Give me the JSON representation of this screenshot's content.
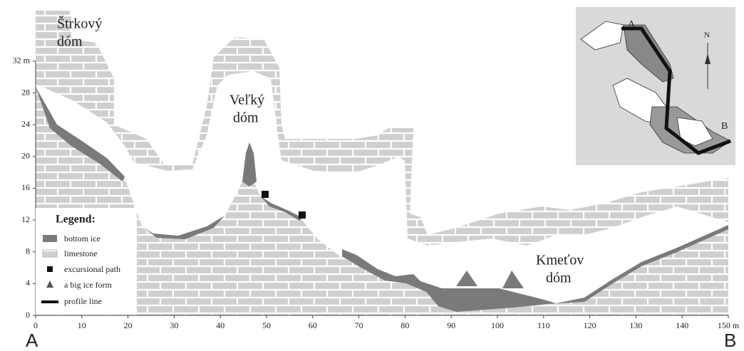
{
  "halls": [
    {
      "lines": [
        "Štrkový",
        "dóm"
      ]
    },
    {
      "lines": [
        "Veľký",
        "dóm"
      ]
    },
    {
      "lines": [
        "Kmeťov",
        "dóm"
      ]
    }
  ],
  "endpoints": [
    "A",
    "B"
  ],
  "legend": {
    "title": "Legend:",
    "items": [
      "bottom ice",
      "limestone",
      "excursional path",
      "a big ice form",
      "profile line"
    ]
  },
  "axes": {
    "xticks": [
      0,
      10,
      20,
      30,
      40,
      50,
      60,
      70,
      80,
      90,
      100,
      110,
      120,
      130,
      140,
      {
        "value": 150,
        "label": "150 m"
      }
    ],
    "yticks": [
      0,
      4,
      8,
      12,
      16,
      20,
      24,
      28,
      {
        "value": 32,
        "label": "32 m"
      }
    ]
  },
  "inset": {
    "labels": [
      "A",
      "B",
      "N"
    ]
  }
}
